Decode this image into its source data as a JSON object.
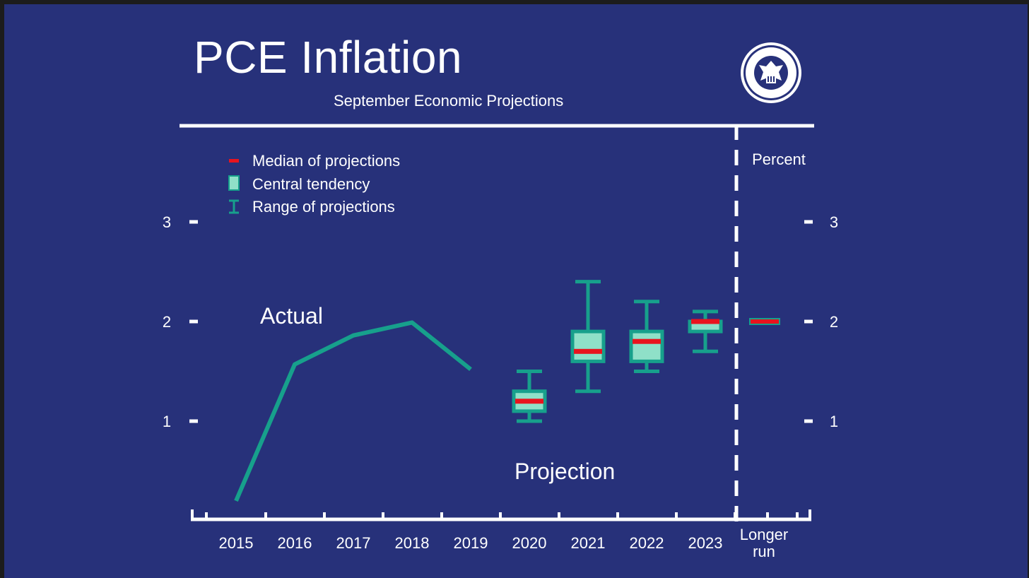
{
  "slide": {
    "title": "PCE Inflation",
    "subtitle": "September Economic Projections",
    "logo_text": "UNITED STATES FEDERAL RESERVE SYSTEM"
  },
  "colors": {
    "background": "#27317a",
    "actual_line": "#17a08c",
    "range": "#17a08c",
    "central_fill": "#8fe0c8",
    "median": "#e8141e",
    "axis": "#ffffff"
  },
  "chart_data": {
    "type": "box",
    "unit_label": "Percent",
    "ylim": [
      0,
      3.5
    ],
    "y_ticks": [
      1,
      2,
      3
    ],
    "categories": [
      "2015",
      "2016",
      "2017",
      "2018",
      "2019",
      "2020",
      "2021",
      "2022",
      "2023",
      "Longer run"
    ],
    "annotations": [
      "Actual",
      "Projection"
    ],
    "legend": {
      "median": "Median of projections",
      "central": "Central tendency",
      "range": "Range of projections"
    },
    "actual": {
      "x": [
        "2015",
        "2016",
        "2017",
        "2018",
        "2019"
      ],
      "y": [
        0.2,
        1.57,
        1.86,
        1.99,
        1.52
      ]
    },
    "projections": [
      {
        "x": "2020",
        "range": [
          1.0,
          1.5
        ],
        "central": [
          1.1,
          1.3
        ],
        "median": 1.2
      },
      {
        "x": "2021",
        "range": [
          1.3,
          2.4
        ],
        "central": [
          1.6,
          1.9
        ],
        "median": 1.7
      },
      {
        "x": "2022",
        "range": [
          1.5,
          2.2
        ],
        "central": [
          1.6,
          1.9
        ],
        "median": 1.8
      },
      {
        "x": "2023",
        "range": [
          1.7,
          2.1
        ],
        "central": [
          1.9,
          2.0
        ],
        "median": 2.0
      },
      {
        "x": "Longer run",
        "range": [
          2.0,
          2.0
        ],
        "central": [
          2.0,
          2.0
        ],
        "median": 2.0
      }
    ]
  }
}
